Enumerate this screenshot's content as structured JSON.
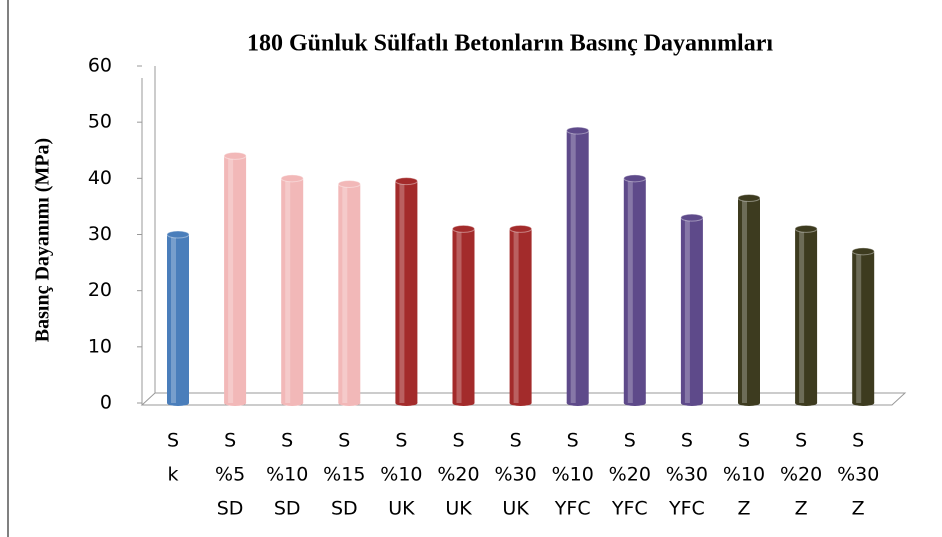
{
  "chart_data": {
    "type": "bar",
    "title": "180 Günluk Sülfatlı Betonların Basınç Dayanımları",
    "y_label": "Basınç Dayanımı (MPa)",
    "categories": [
      [
        "S",
        "k"
      ],
      [
        "S",
        "%5",
        "SD"
      ],
      [
        "S",
        "%10",
        "SD"
      ],
      [
        "S",
        "%15",
        "SD"
      ],
      [
        "S",
        "%10",
        "UK"
      ],
      [
        "S",
        "%20",
        "UK"
      ],
      [
        "S",
        "%30",
        "UK"
      ],
      [
        "S",
        "%10",
        "YFC"
      ],
      [
        "S",
        "%20",
        "YFC"
      ],
      [
        "S",
        "%30",
        "YFC"
      ],
      [
        "S",
        "%10",
        "Z"
      ],
      [
        "S",
        "%20",
        "Z"
      ],
      [
        "S",
        "%30",
        "Z"
      ]
    ],
    "values": [
      30,
      44,
      40,
      39,
      39.5,
      31,
      31,
      48.5,
      40,
      33,
      36.5,
      31,
      27
    ],
    "colors": [
      "#4a7ebb",
      "#f2b8b8",
      "#f2b8b8",
      "#f2b8b8",
      "#a32b2b",
      "#a32b2b",
      "#a32b2b",
      "#5e4a8a",
      "#5e4a8a",
      "#5e4a8a",
      "#3d3b1f",
      "#3d3b1f",
      "#3d3b1f"
    ],
    "ylim": [
      0,
      60
    ],
    "yticks": [
      0,
      10,
      20,
      30,
      40,
      50,
      60
    ],
    "grid": false
  }
}
